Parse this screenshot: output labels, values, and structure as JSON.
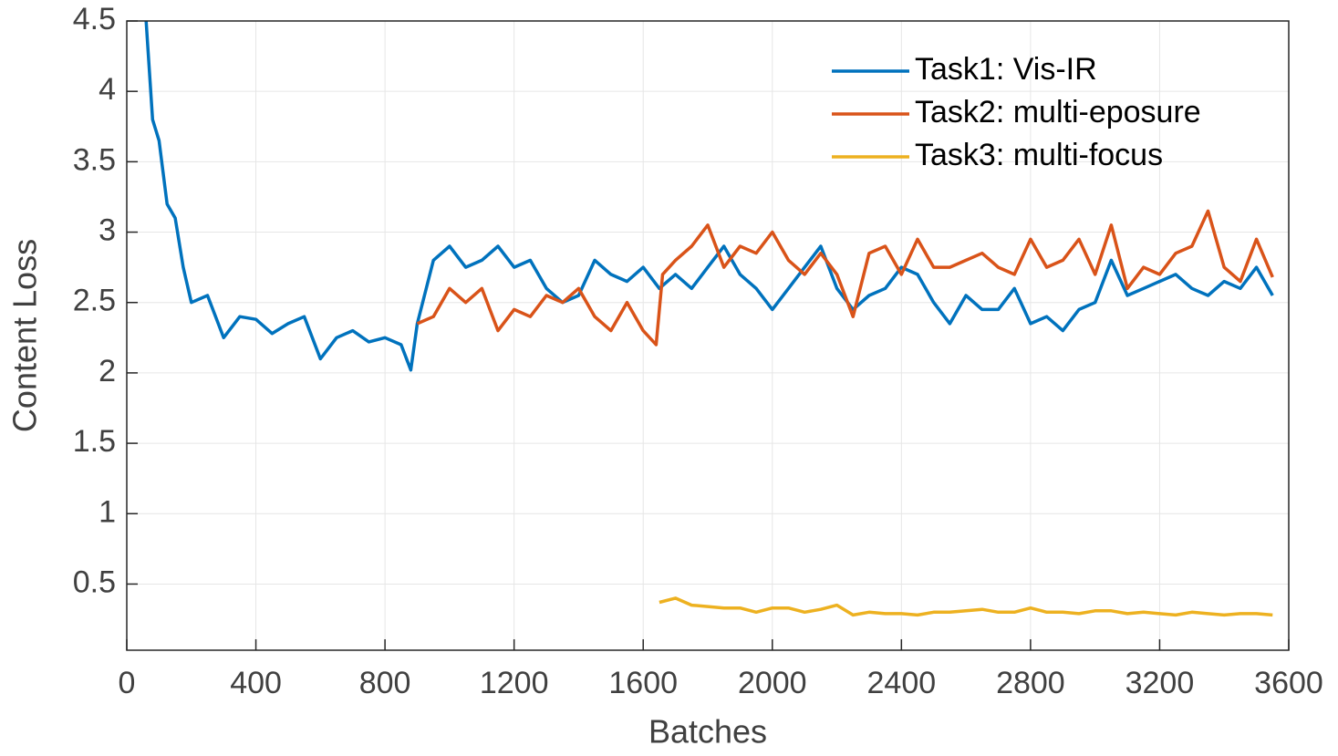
{
  "chart_data": {
    "type": "line",
    "x_label": "Batches",
    "y_label": "Content Loss",
    "xlim": [
      0,
      3600
    ],
    "xticks": [
      0,
      400,
      800,
      1200,
      1600,
      2000,
      2400,
      2800,
      3200,
      3600
    ],
    "ylim": [
      0.03,
      4.5
    ],
    "yticks": [
      0.5,
      1,
      1.5,
      2,
      2.5,
      3,
      3.5,
      4,
      4.5
    ],
    "grid": true,
    "legend": "top-right",
    "series": [
      {
        "name": "Task1: Vis-IR",
        "color": "#0072BD",
        "x": [
          60,
          80,
          100,
          125,
          150,
          175,
          200,
          250,
          300,
          350,
          400,
          450,
          500,
          550,
          600,
          650,
          700,
          750,
          800,
          850,
          880,
          900,
          950,
          1000,
          1050,
          1100,
          1150,
          1200,
          1250,
          1300,
          1350,
          1400,
          1450,
          1500,
          1550,
          1600,
          1650,
          1700,
          1750,
          1800,
          1850,
          1900,
          1950,
          2000,
          2050,
          2100,
          2150,
          2200,
          2250,
          2300,
          2350,
          2400,
          2450,
          2500,
          2550,
          2600,
          2650,
          2700,
          2750,
          2800,
          2850,
          2900,
          2950,
          3000,
          3050,
          3100,
          3150,
          3200,
          3250,
          3300,
          3350,
          3400,
          3450,
          3500,
          3550
        ],
        "values": [
          4.5,
          3.8,
          3.65,
          3.2,
          3.1,
          2.75,
          2.5,
          2.55,
          2.25,
          2.4,
          2.38,
          2.28,
          2.35,
          2.4,
          2.1,
          2.25,
          2.3,
          2.22,
          2.25,
          2.2,
          2.02,
          2.35,
          2.8,
          2.9,
          2.75,
          2.8,
          2.9,
          2.75,
          2.8,
          2.6,
          2.5,
          2.55,
          2.8,
          2.7,
          2.65,
          2.75,
          2.6,
          2.7,
          2.6,
          2.75,
          2.9,
          2.7,
          2.6,
          2.45,
          2.6,
          2.75,
          2.9,
          2.6,
          2.45,
          2.55,
          2.6,
          2.75,
          2.7,
          2.5,
          2.35,
          2.55,
          2.45,
          2.45,
          2.6,
          2.35,
          2.4,
          2.3,
          2.45,
          2.5,
          2.8,
          2.55,
          2.6,
          2.65,
          2.7,
          2.6,
          2.55,
          2.65,
          2.6,
          2.75,
          2.55
        ]
      },
      {
        "name": "Task2: multi-eposure",
        "color": "#D95319",
        "x": [
          900,
          950,
          1000,
          1050,
          1100,
          1150,
          1200,
          1250,
          1300,
          1350,
          1400,
          1450,
          1500,
          1550,
          1600,
          1640,
          1660,
          1700,
          1750,
          1800,
          1850,
          1900,
          1950,
          2000,
          2050,
          2100,
          2150,
          2200,
          2250,
          2300,
          2350,
          2400,
          2450,
          2500,
          2550,
          2600,
          2650,
          2700,
          2750,
          2800,
          2850,
          2900,
          2950,
          3000,
          3050,
          3100,
          3150,
          3200,
          3250,
          3300,
          3350,
          3400,
          3450,
          3500,
          3550
        ],
        "values": [
          2.35,
          2.4,
          2.6,
          2.5,
          2.6,
          2.3,
          2.45,
          2.4,
          2.55,
          2.5,
          2.6,
          2.4,
          2.3,
          2.5,
          2.3,
          2.2,
          2.7,
          2.8,
          2.9,
          3.05,
          2.75,
          2.9,
          2.85,
          3.0,
          2.8,
          2.7,
          2.85,
          2.7,
          2.4,
          2.85,
          2.9,
          2.7,
          2.95,
          2.75,
          2.75,
          2.8,
          2.85,
          2.75,
          2.7,
          2.95,
          2.75,
          2.8,
          2.95,
          2.7,
          3.05,
          2.6,
          2.75,
          2.7,
          2.85,
          2.9,
          3.15,
          2.75,
          2.65,
          2.95,
          2.68
        ]
      },
      {
        "name": "Task3: multi-focus",
        "color": "#EDB120",
        "x": [
          1650,
          1700,
          1750,
          1800,
          1850,
          1900,
          1950,
          2000,
          2050,
          2100,
          2150,
          2200,
          2250,
          2300,
          2350,
          2400,
          2450,
          2500,
          2550,
          2600,
          2650,
          2700,
          2750,
          2800,
          2850,
          2900,
          2950,
          3000,
          3050,
          3100,
          3150,
          3200,
          3250,
          3300,
          3350,
          3400,
          3450,
          3500,
          3550
        ],
        "values": [
          0.37,
          0.4,
          0.35,
          0.34,
          0.33,
          0.33,
          0.3,
          0.33,
          0.33,
          0.3,
          0.32,
          0.35,
          0.28,
          0.3,
          0.29,
          0.29,
          0.28,
          0.3,
          0.3,
          0.31,
          0.32,
          0.3,
          0.3,
          0.33,
          0.3,
          0.3,
          0.29,
          0.31,
          0.31,
          0.29,
          0.3,
          0.29,
          0.28,
          0.3,
          0.29,
          0.28,
          0.29,
          0.29,
          0.28
        ]
      }
    ]
  }
}
